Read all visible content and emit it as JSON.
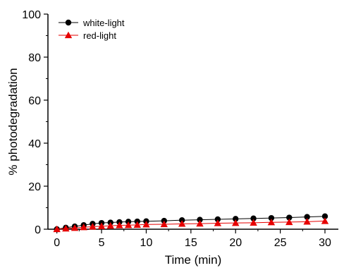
{
  "chart_data": {
    "type": "line",
    "xlabel": "Time (min)",
    "ylabel": "% photodegradation",
    "xlim": [
      -1,
      31.5
    ],
    "ylim": [
      0,
      100
    ],
    "xticks": [
      0,
      5,
      10,
      15,
      20,
      25,
      30
    ],
    "yticks": [
      0,
      20,
      40,
      60,
      80,
      100
    ],
    "grid": false,
    "legend_position": "top-left",
    "series": [
      {
        "name": "white-light",
        "color": "#000000",
        "marker": "circle",
        "x": [
          0,
          1,
          2,
          3,
          4,
          5,
          6,
          7,
          8,
          9,
          10,
          12,
          14,
          16,
          18,
          20,
          22,
          24,
          26,
          28,
          30
        ],
        "y": [
          0,
          0.7,
          1.3,
          1.9,
          2.5,
          2.9,
          3.1,
          3.3,
          3.5,
          3.6,
          3.7,
          3.9,
          4.2,
          4.4,
          4.6,
          4.8,
          5.0,
          5.2,
          5.4,
          5.7,
          6.0
        ]
      },
      {
        "name": "red-light",
        "color": "#e60000",
        "marker": "triangle",
        "x": [
          0,
          1,
          2,
          3,
          4,
          5,
          6,
          7,
          8,
          9,
          10,
          12,
          14,
          16,
          18,
          20,
          22,
          24,
          26,
          28,
          30
        ],
        "y": [
          0,
          0.3,
          0.6,
          0.9,
          1.2,
          1.4,
          1.6,
          1.8,
          1.9,
          2.0,
          2.2,
          2.3,
          2.5,
          2.6,
          2.8,
          2.9,
          3.0,
          3.2,
          3.3,
          3.5,
          3.8
        ]
      }
    ]
  }
}
